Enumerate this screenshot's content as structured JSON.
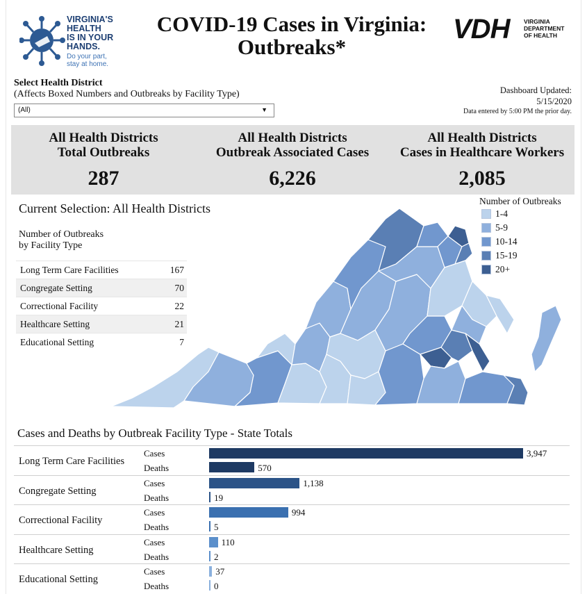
{
  "header": {
    "logo_lines": [
      "VIRGINIA'S",
      "HEALTH",
      "IS IN YOUR",
      "HANDS."
    ],
    "logo_tagline": [
      "Do your part,",
      "stay at home."
    ],
    "title_line1": "COVID-19 Cases in Virginia:",
    "title_line2": "Outbreaks*",
    "vdh_mark": "VDH",
    "vdh_sub": [
      "VIRGINIA",
      "DEPARTMENT",
      "OF HEALTH"
    ]
  },
  "selector": {
    "title": "Select Health District",
    "subtitle": "(Affects Boxed Numbers and Outbreaks by Facility Type)",
    "value": "(All)"
  },
  "updated": {
    "label": "Dashboard Updated:",
    "date": "5/15/2020",
    "note": "Data entered by 5:00 PM the prior day."
  },
  "kpis": [
    {
      "line1": "All Health Districts",
      "line2": "Total Outbreaks",
      "value": "287"
    },
    {
      "line1": "All Health Districts",
      "line2": "Outbreak Associated Cases",
      "value": "6,226"
    },
    {
      "line1": "All Health Districts",
      "line2": "Cases in Healthcare Workers",
      "value": "2,085"
    }
  ],
  "current_selection": "Current Selection: All Health Districts",
  "facility_table": {
    "heading_line1": "Number of Outbreaks",
    "heading_line2": "by Facility Type",
    "rows": [
      {
        "label": "Long Term Care Facilities",
        "value": "167"
      },
      {
        "label": "Congregate Setting",
        "value": "70"
      },
      {
        "label": "Correctional Facility",
        "value": "22"
      },
      {
        "label": "Healthcare Setting",
        "value": "21"
      },
      {
        "label": "Educational Setting",
        "value": "7"
      }
    ]
  },
  "map_legend": {
    "title": "Number of Outbreaks",
    "items": [
      {
        "label": "1-4",
        "color": "#bcd3ec"
      },
      {
        "label": "5-9",
        "color": "#8fb0dd"
      },
      {
        "label": "10-14",
        "color": "#7197ce"
      },
      {
        "label": "15-19",
        "color": "#5a7fb4"
      },
      {
        "label": "20+",
        "color": "#3d5f92"
      }
    ]
  },
  "chart_data": {
    "type": "bar",
    "title": "Cases and Deaths by Outbreak Facility Type - State Totals",
    "categories": [
      "Long Term Care Facilities",
      "Congregate Setting",
      "Correctional Facility",
      "Healthcare Setting",
      "Educational Setting"
    ],
    "series": [
      {
        "name": "Cases",
        "values": [
          3947,
          1138,
          994,
          110,
          37
        ],
        "labels": [
          "3,947",
          "1,138",
          "994",
          "110",
          "37"
        ]
      },
      {
        "name": "Deaths",
        "values": [
          570,
          19,
          5,
          2,
          0
        ],
        "labels": [
          "570",
          "19",
          "5",
          "2",
          "0"
        ]
      }
    ],
    "colors": [
      "#1e3a63",
      "#2b5387",
      "#3b70b0",
      "#5b8fcb",
      "#8ab0dd"
    ],
    "xlim": [
      0,
      3947
    ]
  }
}
